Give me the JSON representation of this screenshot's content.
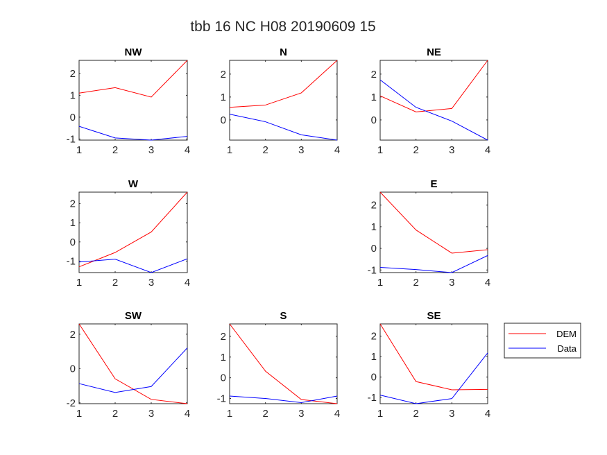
{
  "figure": {
    "title": "tbb 16 NC H08 20190609 15"
  },
  "colors": {
    "dem": "#ff0000",
    "data": "#0000ff",
    "axis": "#262626"
  },
  "legend": {
    "placement": "right of SE",
    "entries": [
      {
        "label": "DEM",
        "color": "#ff0000"
      },
      {
        "label": "Data",
        "color": "#0000ff"
      }
    ]
  },
  "chart_data": [
    {
      "type": "line",
      "title": "NW",
      "x": [
        1,
        2,
        3,
        4
      ],
      "xlim": [
        1,
        4
      ],
      "ylim": [
        -1.05,
        2.6
      ],
      "yticks": [
        -1,
        0,
        1,
        2
      ],
      "xticks": [
        1,
        2,
        3,
        4
      ],
      "series": [
        {
          "name": "DEM",
          "values": [
            1.1,
            1.35,
            0.92,
            2.6
          ]
        },
        {
          "name": "Data",
          "values": [
            -0.42,
            -0.95,
            -1.05,
            -0.88
          ]
        }
      ]
    },
    {
      "type": "line",
      "title": "N",
      "x": [
        1,
        2,
        3,
        4
      ],
      "xlim": [
        1,
        4
      ],
      "ylim": [
        -0.88,
        2.6
      ],
      "yticks": [
        0,
        1,
        2
      ],
      "xticks": [
        1,
        2,
        3,
        4
      ],
      "series": [
        {
          "name": "DEM",
          "values": [
            0.55,
            0.65,
            1.18,
            2.6
          ]
        },
        {
          "name": "Data",
          "values": [
            0.25,
            -0.08,
            -0.65,
            -0.88
          ]
        }
      ]
    },
    {
      "type": "line",
      "title": "NE",
      "x": [
        1,
        2,
        3,
        4
      ],
      "xlim": [
        1,
        4
      ],
      "ylim": [
        -0.88,
        2.6
      ],
      "yticks": [
        0,
        1,
        2
      ],
      "xticks": [
        1,
        2,
        3,
        4
      ],
      "series": [
        {
          "name": "DEM",
          "values": [
            1.05,
            0.35,
            0.5,
            2.6
          ]
        },
        {
          "name": "Data",
          "values": [
            1.75,
            0.55,
            -0.05,
            -0.88
          ]
        }
      ]
    },
    {
      "type": "line",
      "title": "W",
      "x": [
        1,
        2,
        3,
        4
      ],
      "xlim": [
        1,
        4
      ],
      "ylim": [
        -1.6,
        2.6
      ],
      "yticks": [
        -1,
        0,
        1,
        2
      ],
      "xticks": [
        1,
        2,
        3,
        4
      ],
      "series": [
        {
          "name": "DEM",
          "values": [
            -1.3,
            -0.55,
            0.52,
            2.6
          ]
        },
        {
          "name": "Data",
          "values": [
            -1.05,
            -0.9,
            -1.6,
            -0.88
          ]
        }
      ]
    },
    {
      "type": "line",
      "title": "E",
      "x": [
        1,
        2,
        3,
        4
      ],
      "xlim": [
        1,
        4
      ],
      "ylim": [
        -1.12,
        2.6
      ],
      "yticks": [
        -1,
        0,
        1,
        2
      ],
      "xticks": [
        1,
        2,
        3,
        4
      ],
      "series": [
        {
          "name": "DEM",
          "values": [
            2.6,
            0.85,
            -0.22,
            -0.06
          ]
        },
        {
          "name": "Data",
          "values": [
            -0.88,
            -0.98,
            -1.12,
            -0.33
          ]
        }
      ]
    },
    {
      "type": "line",
      "title": "SW",
      "x": [
        1,
        2,
        3,
        4
      ],
      "xlim": [
        1,
        4
      ],
      "ylim": [
        -2.05,
        2.6
      ],
      "yticks": [
        -2,
        0,
        2
      ],
      "xticks": [
        1,
        2,
        3,
        4
      ],
      "series": [
        {
          "name": "DEM",
          "values": [
            2.6,
            -0.6,
            -1.8,
            -2.05
          ]
        },
        {
          "name": "Data",
          "values": [
            -0.88,
            -1.4,
            -1.05,
            1.2
          ]
        }
      ]
    },
    {
      "type": "line",
      "title": "S",
      "x": [
        1,
        2,
        3,
        4
      ],
      "xlim": [
        1,
        4
      ],
      "ylim": [
        -1.25,
        2.6
      ],
      "yticks": [
        -1,
        0,
        1,
        2
      ],
      "xticks": [
        1,
        2,
        3,
        4
      ],
      "series": [
        {
          "name": "DEM",
          "values": [
            2.6,
            0.32,
            -1.05,
            -1.25
          ]
        },
        {
          "name": "Data",
          "values": [
            -0.88,
            -1.0,
            -1.2,
            -0.88
          ]
        }
      ]
    },
    {
      "type": "line",
      "title": "SE",
      "x": [
        1,
        2,
        3,
        4
      ],
      "xlim": [
        1,
        4
      ],
      "ylim": [
        -1.3,
        2.6
      ],
      "yticks": [
        -1,
        0,
        1,
        2
      ],
      "xticks": [
        1,
        2,
        3,
        4
      ],
      "series": [
        {
          "name": "DEM",
          "values": [
            2.6,
            -0.22,
            -0.62,
            -0.6
          ]
        },
        {
          "name": "Data",
          "values": [
            -0.88,
            -1.3,
            -1.05,
            1.18
          ]
        }
      ]
    }
  ]
}
